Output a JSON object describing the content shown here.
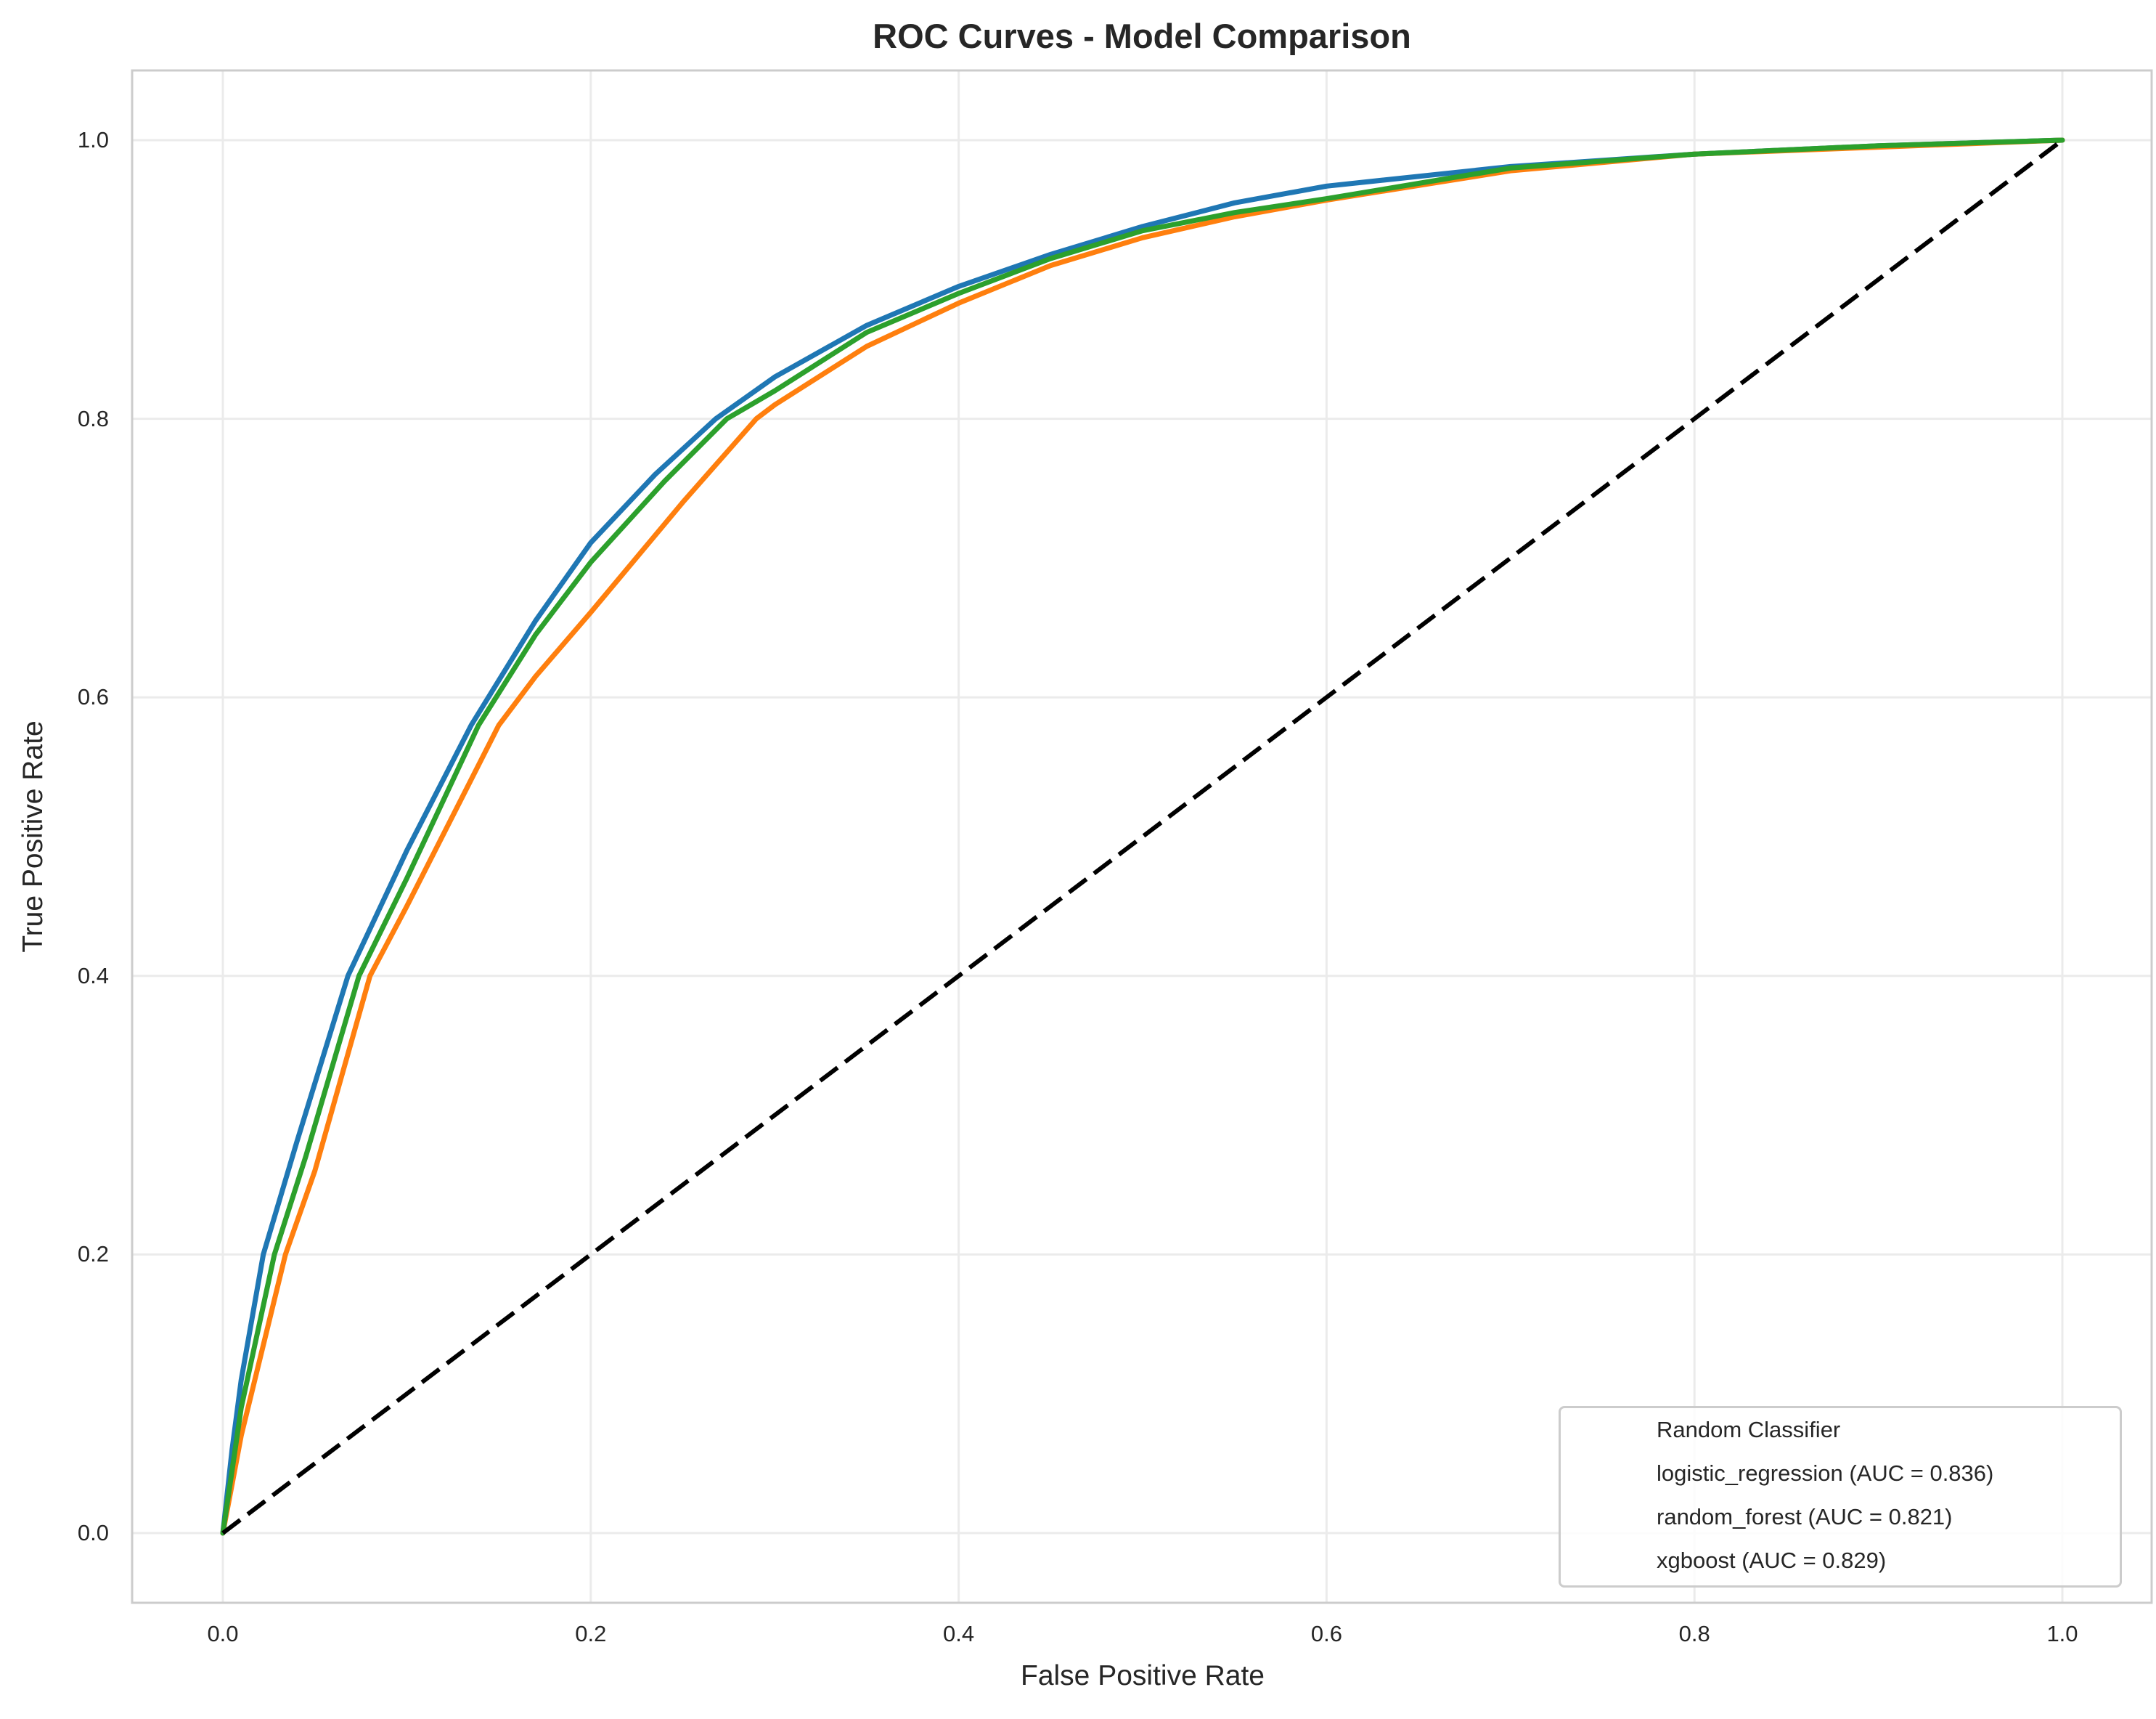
{
  "chart_data": {
    "type": "line",
    "title": "ROC Curves - Model Comparison",
    "xlabel": "False Positive Rate",
    "ylabel": "True Positive Rate",
    "xlim": [
      -0.05,
      1.05
    ],
    "ylim": [
      -0.05,
      1.05
    ],
    "xticks": [
      "0.0",
      "0.2",
      "0.4",
      "0.6",
      "0.8",
      "1.0"
    ],
    "yticks": [
      "0.0",
      "0.2",
      "0.4",
      "0.6",
      "0.8",
      "1.0"
    ],
    "grid": true,
    "legend_position": "lower right",
    "series": [
      {
        "name": "Random Classifier",
        "label": "Random Classifier",
        "color": "#000000",
        "style": "dashed",
        "x": [
          0,
          1
        ],
        "y": [
          0,
          1
        ]
      },
      {
        "name": "logistic_regression",
        "label": "logistic_regression (AUC = 0.836)",
        "auc": 0.836,
        "color": "#1f77b4",
        "style": "solid",
        "x": [
          0,
          0.005,
          0.01,
          0.022,
          0.04,
          0.068,
          0.1,
          0.135,
          0.17,
          0.2,
          0.235,
          0.268,
          0.3,
          0.35,
          0.4,
          0.45,
          0.5,
          0.55,
          0.6,
          0.7,
          0.8,
          0.9,
          1.0
        ],
        "y": [
          0,
          0.06,
          0.11,
          0.2,
          0.28,
          0.4,
          0.49,
          0.58,
          0.655,
          0.711,
          0.76,
          0.8,
          0.83,
          0.867,
          0.895,
          0.918,
          0.938,
          0.955,
          0.967,
          0.981,
          0.99,
          0.996,
          1.0
        ]
      },
      {
        "name": "random_forest",
        "label": "random_forest (AUC = 0.821)",
        "auc": 0.821,
        "color": "#ff7f0e",
        "style": "solid",
        "x": [
          0,
          0.005,
          0.01,
          0.034,
          0.05,
          0.08,
          0.1,
          0.15,
          0.17,
          0.2,
          0.25,
          0.29,
          0.3,
          0.35,
          0.4,
          0.45,
          0.5,
          0.55,
          0.6,
          0.7,
          0.8,
          0.9,
          1.0
        ],
        "y": [
          0,
          0.035,
          0.07,
          0.2,
          0.26,
          0.4,
          0.45,
          0.58,
          0.615,
          0.661,
          0.74,
          0.8,
          0.81,
          0.852,
          0.883,
          0.91,
          0.93,
          0.945,
          0.957,
          0.978,
          0.99,
          0.995,
          1.0
        ]
      },
      {
        "name": "xgboost",
        "label": "xgboost (AUC = 0.829)",
        "auc": 0.829,
        "color": "#2ca02c",
        "style": "solid",
        "x": [
          0,
          0.005,
          0.01,
          0.028,
          0.045,
          0.074,
          0.1,
          0.139,
          0.17,
          0.2,
          0.24,
          0.274,
          0.3,
          0.35,
          0.4,
          0.45,
          0.5,
          0.55,
          0.6,
          0.7,
          0.8,
          0.9,
          1.0
        ],
        "y": [
          0,
          0.045,
          0.09,
          0.2,
          0.27,
          0.4,
          0.47,
          0.58,
          0.645,
          0.697,
          0.755,
          0.8,
          0.82,
          0.862,
          0.89,
          0.915,
          0.935,
          0.948,
          0.958,
          0.98,
          0.99,
          0.996,
          1.0
        ]
      }
    ]
  },
  "colors": {
    "grid": "#ebebeb",
    "spine": "#cccccc",
    "text": "#262626"
  }
}
